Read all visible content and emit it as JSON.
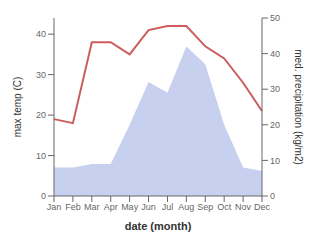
{
  "chart_data": {
    "type": "line",
    "xlabel": "date (month)",
    "ylabel": "max temp (C)",
    "y2label": "med. precipitation (kg/m2)",
    "categories": [
      "Jan",
      "Feb",
      "Mar",
      "Apr",
      "May",
      "Jun",
      "Jul",
      "Aug",
      "Sep",
      "Oct",
      "Nov",
      "Dec"
    ],
    "series": [
      {
        "type": "area",
        "axis": "y2",
        "color": "#c8d0f0",
        "values": [
          8,
          8,
          9,
          9,
          20,
          32,
          29,
          42,
          37,
          20,
          8,
          7
        ]
      },
      {
        "type": "line",
        "color": "#cd5c5c",
        "values": [
          19,
          18,
          38,
          38,
          35,
          41,
          42,
          42,
          37,
          34,
          28,
          21
        ]
      }
    ],
    "ylim": [
      0,
      44
    ],
    "yticks": [
      0,
      10,
      20,
      30,
      40
    ],
    "y2lim": [
      0,
      50
    ],
    "y2ticks": [
      0,
      10,
      20,
      30,
      40,
      50
    ]
  }
}
